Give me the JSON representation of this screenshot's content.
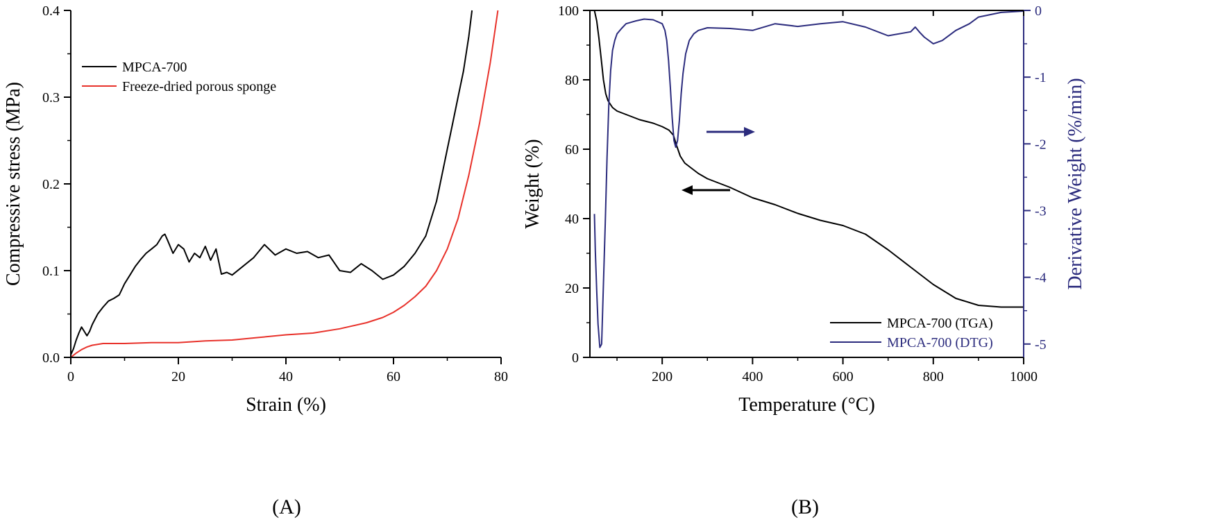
{
  "chart_data": [
    {
      "panel": "(A)",
      "type": "line",
      "xlabel": "Strain (%)",
      "ylabel": "Compressive stress (MPa)",
      "xlim": [
        0,
        80
      ],
      "ylim": [
        0,
        0.4
      ],
      "xticks": [
        0,
        20,
        40,
        60,
        80
      ],
      "xtick_labels": [
        "0",
        "20",
        "40",
        "60",
        "80"
      ],
      "yticks": [
        0.0,
        0.1,
        0.2,
        0.3,
        0.4
      ],
      "ytick_labels": [
        "0.0",
        "0.1",
        "0.2",
        "0.3",
        "0.4"
      ],
      "legend_position": "top-left",
      "series": [
        {
          "name": "MPCA-700",
          "color": "#000000",
          "x": [
            0,
            0.5,
            1,
            1.5,
            2,
            2.5,
            3,
            3.5,
            4,
            5,
            6,
            7,
            8,
            9,
            10,
            11,
            12,
            13,
            14,
            15,
            16,
            17,
            17.5,
            18,
            19,
            20,
            21,
            22,
            23,
            24,
            25,
            26,
            27,
            28,
            29,
            30,
            32,
            34,
            36,
            38,
            40,
            42,
            44,
            46,
            48,
            50,
            52,
            54,
            56,
            58,
            60,
            62,
            64,
            66,
            68,
            70,
            71,
            72,
            73,
            74,
            74.6
          ],
          "y": [
            0.003,
            0.01,
            0.02,
            0.028,
            0.035,
            0.03,
            0.025,
            0.03,
            0.038,
            0.05,
            0.058,
            0.065,
            0.068,
            0.072,
            0.085,
            0.095,
            0.105,
            0.113,
            0.12,
            0.125,
            0.13,
            0.14,
            0.142,
            0.135,
            0.12,
            0.13,
            0.125,
            0.11,
            0.12,
            0.115,
            0.128,
            0.112,
            0.125,
            0.096,
            0.098,
            0.095,
            0.105,
            0.115,
            0.13,
            0.118,
            0.125,
            0.12,
            0.122,
            0.115,
            0.118,
            0.1,
            0.098,
            0.108,
            0.1,
            0.09,
            0.095,
            0.105,
            0.12,
            0.14,
            0.18,
            0.24,
            0.27,
            0.3,
            0.33,
            0.37,
            0.4
          ]
        },
        {
          "name": "Freeze-dried porous sponge",
          "color": "#e8312a",
          "x": [
            0,
            1,
            2,
            3,
            4,
            5,
            6,
            8,
            10,
            15,
            20,
            25,
            30,
            35,
            40,
            45,
            50,
            55,
            58,
            60,
            62,
            64,
            66,
            68,
            70,
            72,
            74,
            76,
            78,
            79.4
          ],
          "y": [
            0,
            0.005,
            0.009,
            0.012,
            0.014,
            0.015,
            0.016,
            0.016,
            0.016,
            0.017,
            0.017,
            0.019,
            0.02,
            0.023,
            0.026,
            0.028,
            0.033,
            0.04,
            0.046,
            0.052,
            0.06,
            0.07,
            0.082,
            0.1,
            0.125,
            0.16,
            0.21,
            0.27,
            0.34,
            0.4
          ]
        }
      ]
    },
    {
      "panel": "(B)",
      "type": "line",
      "xlabel": "Temperature (°C)",
      "ylabel": "Weight (%)",
      "ylabel_right": "Derivative Weight (%/min)",
      "xlim": [
        40,
        1000
      ],
      "ylim": [
        0,
        100
      ],
      "ylim_right": [
        -5.2,
        0
      ],
      "xticks": [
        200,
        400,
        600,
        800,
        1000
      ],
      "xtick_labels": [
        "200",
        "400",
        "600",
        "800",
        "1000"
      ],
      "yticks": [
        0,
        20,
        40,
        60,
        80,
        100
      ],
      "ytick_labels": [
        "0",
        "20",
        "40",
        "60",
        "80",
        "100"
      ],
      "yticks_right": [
        0,
        -1,
        -2,
        -3,
        -4,
        -5
      ],
      "ytick_labels_right": [
        "0",
        "-1",
        "-2",
        "-3",
        "-4",
        "-5"
      ],
      "legend_position": "bottom-right",
      "series": [
        {
          "name": "MPCA-700 (TGA)",
          "axis": "left",
          "color": "#000000",
          "x": [
            50,
            55,
            60,
            65,
            70,
            75,
            80,
            90,
            100,
            120,
            150,
            180,
            200,
            215,
            225,
            232,
            240,
            250,
            260,
            280,
            300,
            350,
            400,
            450,
            500,
            550,
            600,
            650,
            700,
            750,
            800,
            850,
            900,
            950,
            1000
          ],
          "y": [
            100,
            97,
            92,
            86,
            80,
            76,
            74,
            72,
            71,
            70,
            68.5,
            67.5,
            66.5,
            65.5,
            64,
            61,
            58,
            56,
            55,
            53,
            51.5,
            49,
            46,
            44,
            41.5,
            39.5,
            38,
            35.5,
            31,
            26,
            21,
            17,
            15,
            14.5,
            14.5
          ]
        },
        {
          "name": "MPCA-700 (DTG)",
          "axis": "right",
          "color": "#2b2b7d",
          "x": [
            50,
            52,
            55,
            58,
            62,
            66,
            70,
            74,
            78,
            82,
            86,
            90,
            95,
            100,
            110,
            120,
            140,
            160,
            180,
            200,
            206,
            210,
            214,
            218,
            222,
            226,
            230,
            234,
            238,
            242,
            246,
            252,
            260,
            270,
            280,
            300,
            350,
            400,
            450,
            500,
            550,
            600,
            650,
            700,
            750,
            760,
            770,
            780,
            800,
            820,
            850,
            880,
            900,
            950,
            1000
          ],
          "y": [
            -3.05,
            -3.6,
            -4.2,
            -4.7,
            -5.05,
            -5.0,
            -4.1,
            -3.2,
            -2.2,
            -1.4,
            -0.9,
            -0.6,
            -0.45,
            -0.35,
            -0.27,
            -0.2,
            -0.16,
            -0.13,
            -0.14,
            -0.2,
            -0.3,
            -0.45,
            -0.75,
            -1.15,
            -1.6,
            -1.95,
            -2.05,
            -1.95,
            -1.65,
            -1.25,
            -0.95,
            -0.65,
            -0.45,
            -0.35,
            -0.3,
            -0.26,
            -0.27,
            -0.3,
            -0.2,
            -0.24,
            -0.2,
            -0.17,
            -0.25,
            -0.38,
            -0.32,
            -0.25,
            -0.33,
            -0.4,
            -0.5,
            -0.45,
            -0.3,
            -0.2,
            -0.1,
            -0.03,
            -0.01
          ]
        }
      ]
    }
  ]
}
